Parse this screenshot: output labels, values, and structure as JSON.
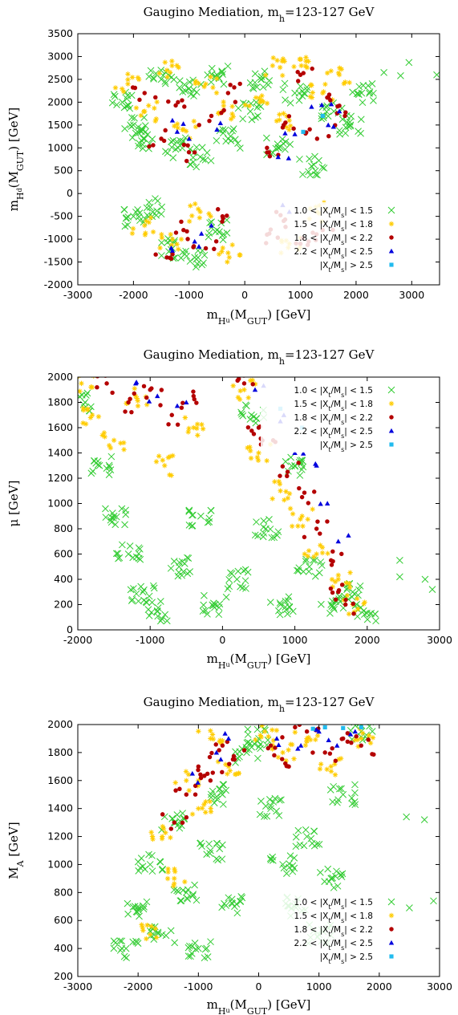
{
  "legend": {
    "entries": [
      {
        "label": "1.0 < |X_t/M_s| < 1.5",
        "color": "#33cc33",
        "marker": "cross"
      },
      {
        "label": "1.5 < |X_t/M_s| < 1.8",
        "color": "#ffcc00",
        "marker": "star"
      },
      {
        "label": "1.8 < |X_t/M_s| < 2.2",
        "color": "#b40000",
        "marker": "circle"
      },
      {
        "label": "2.2 < |X_t/M_s| < 2.5",
        "color": "#0000dd",
        "marker": "triangle"
      },
      {
        "label": "|X_t/M_s| > 2.5",
        "color": "#22bbee",
        "marker": "square"
      }
    ],
    "placement": "bottom-right"
  },
  "chart_data": [
    {
      "type": "scatter",
      "title": "Gaugino Mediation, m_h=123-127 GeV",
      "xlabel": "m_{H_u}(M_{GUT}) [GeV]",
      "ylabel": "m_{H_d}(M_{GUT}) [GeV]",
      "xlim": [
        -3000,
        3500
      ],
      "ylim": [
        -2000,
        3500
      ],
      "xticks": [
        "-3000",
        "-2000",
        "-1000",
        "0",
        "1000",
        "2000",
        "3000"
      ],
      "xtick_values": [
        -3000,
        -2000,
        -1000,
        0,
        1000,
        2000,
        3000
      ],
      "yticks": [
        "-2000",
        "-1500",
        "-1000",
        "-500",
        "0",
        "500",
        "1000",
        "1500",
        "2000",
        "2500",
        "3000",
        "3500"
      ],
      "ytick_values": [
        -2000,
        -1500,
        -1000,
        -500,
        0,
        500,
        1000,
        1500,
        2000,
        2500,
        3000,
        3500
      ],
      "legend_placement": "bottom-right",
      "series": [
        {
          "name": "1.0 < |X_t/M_s| < 1.5",
          "points": [
            [
              -2200,
              2000
            ],
            [
              -2000,
              1500
            ],
            [
              -1800,
              1200
            ],
            [
              -1500,
              2500
            ],
            [
              -1200,
              1000
            ],
            [
              -1000,
              2300
            ],
            [
              -800,
              800
            ],
            [
              -500,
              2600
            ],
            [
              -300,
              1200
            ],
            [
              100,
              1800
            ],
            [
              300,
              2500
            ],
            [
              600,
              1000
            ],
            [
              900,
              2200
            ],
            [
              1200,
              600
            ],
            [
              1600,
              1800
            ],
            [
              1900,
              1500
            ],
            [
              2100,
              2200
            ],
            [
              -2000,
              -500
            ],
            [
              -1700,
              -300
            ],
            [
              -1300,
              -1200
            ],
            [
              -900,
              -1400
            ],
            [
              -500,
              -800
            ],
            [
              2500,
              2650
            ],
            [
              2800,
              2580
            ],
            [
              2950,
              2870
            ],
            [
              3450,
              2600
            ]
          ]
        },
        {
          "name": "1.5 < |X_t/M_s| < 1.8",
          "points": [
            [
              -2100,
              2400
            ],
            [
              -1800,
              1800
            ],
            [
              -1400,
              2700
            ],
            [
              -1100,
              1400
            ],
            [
              -700,
              2400
            ],
            [
              -400,
              1800
            ],
            [
              200,
              2100
            ],
            [
              500,
              2800
            ],
            [
              800,
              1600
            ],
            [
              1100,
              2900
            ],
            [
              1400,
              2200
            ],
            [
              1700,
              2600
            ],
            [
              -1800,
              -700
            ],
            [
              -1300,
              -1000
            ],
            [
              -800,
              -400
            ],
            [
              -300,
              -1300
            ],
            [
              800,
              -1100
            ],
            [
              1300,
              -400
            ]
          ]
        },
        {
          "name": "1.8 < |X_t/M_s| < 2.2",
          "points": [
            [
              -1800,
              2200
            ],
            [
              -1500,
              1200
            ],
            [
              -1200,
              2000
            ],
            [
              -900,
              900
            ],
            [
              -600,
              1700
            ],
            [
              -300,
              2200
            ],
            [
              400,
              1000
            ],
            [
              700,
              1500
            ],
            [
              1000,
              2600
            ],
            [
              1300,
              1200
            ],
            [
              1500,
              2100
            ],
            [
              1800,
              1700
            ],
            [
              -1400,
              -1400
            ],
            [
              -1100,
              -800
            ],
            [
              -700,
              -1200
            ],
            [
              -400,
              -500
            ],
            [
              400,
              -900
            ],
            [
              700,
              -600
            ],
            [
              1000,
              -1100
            ],
            [
              1400,
              -800
            ]
          ]
        },
        {
          "name": "2.2 < |X_t/M_s| < 2.5",
          "points": [
            [
              -1300,
              1600
            ],
            [
              -1000,
              1200
            ],
            [
              -500,
              1400
            ],
            [
              600,
              800
            ],
            [
              900,
              1300
            ],
            [
              1200,
              1900
            ],
            [
              1500,
              1500
            ],
            [
              1700,
              1800
            ],
            [
              -1300,
              -1250
            ],
            [
              -900,
              -1050
            ],
            [
              -600,
              -700
            ],
            [
              800,
              -400
            ]
          ]
        },
        {
          "name": "|X_t/M_s| > 2.5",
          "points": [
            [
              1050,
              1350
            ],
            [
              1400,
              1700
            ]
          ]
        }
      ]
    },
    {
      "type": "scatter",
      "title": "Gaugino Mediation, m_h=123-127 GeV",
      "xlabel": "m_{H_u}(M_{GUT}) [GeV]",
      "ylabel": "μ [GeV]",
      "xlim": [
        -2000,
        3000
      ],
      "ylim": [
        0,
        2000
      ],
      "xticks": [
        "-2000",
        "-1000",
        "0",
        "1000",
        "2000",
        "3000"
      ],
      "xtick_values": [
        -2000,
        -1000,
        0,
        1000,
        2000,
        3000
      ],
      "yticks": [
        "0",
        "200",
        "400",
        "600",
        "800",
        "1000",
        "1200",
        "1400",
        "1600",
        "1800",
        "2000"
      ],
      "ytick_values": [
        0,
        200,
        400,
        600,
        800,
        1000,
        1200,
        1400,
        1600,
        1800,
        2000
      ],
      "legend_placement": "top-right",
      "series": [
        {
          "name": "1.0 < |X_t/M_s| < 1.5",
          "points": [
            [
              -1900,
              1800
            ],
            [
              -1700,
              1300
            ],
            [
              -1500,
              900
            ],
            [
              -1300,
              600
            ],
            [
              -1100,
              300
            ],
            [
              -900,
              150
            ],
            [
              -600,
              500
            ],
            [
              -300,
              900
            ],
            [
              -100,
              200
            ],
            [
              200,
              400
            ],
            [
              400,
              1700
            ],
            [
              600,
              800
            ],
            [
              800,
              200
            ],
            [
              1000,
              1300
            ],
            [
              1200,
              500
            ],
            [
              1500,
              200
            ],
            [
              1800,
              300
            ],
            [
              1950,
              150
            ],
            [
              2450,
              550
            ],
            [
              2450,
              420
            ],
            [
              2800,
              400
            ],
            [
              2900,
              320
            ]
          ]
        },
        {
          "name": "1.5 < |X_t/M_s| < 1.8",
          "points": [
            [
              -1950,
              1950
            ],
            [
              -1800,
              1700
            ],
            [
              -1500,
              1500
            ],
            [
              -1200,
              1850
            ],
            [
              -800,
              1300
            ],
            [
              -400,
              1600
            ],
            [
              300,
              1900
            ],
            [
              500,
              1400
            ],
            [
              800,
              1100
            ],
            [
              1100,
              900
            ],
            [
              1300,
              600
            ],
            [
              1600,
              400
            ],
            [
              1800,
              200
            ]
          ]
        },
        {
          "name": "1.8 < |X_t/M_s| < 2.2",
          "points": [
            [
              -1600,
              1950
            ],
            [
              -1300,
              1800
            ],
            [
              -1000,
              1900
            ],
            [
              -700,
              1700
            ],
            [
              -400,
              1850
            ],
            [
              300,
              1950
            ],
            [
              500,
              1600
            ],
            [
              700,
              1500
            ],
            [
              900,
              1250
            ],
            [
              1100,
              1050
            ],
            [
              1300,
              800
            ],
            [
              1500,
              550
            ],
            [
              1600,
              300
            ],
            [
              1700,
              200
            ]
          ]
        },
        {
          "name": "2.2 < |X_t/M_s| < 2.5",
          "points": [
            [
              -1200,
              1950
            ],
            [
              -900,
              1850
            ],
            [
              -500,
              1800
            ],
            [
              450,
              1900
            ],
            [
              800,
              1650
            ],
            [
              1000,
              1400
            ],
            [
              1300,
              1300
            ],
            [
              1450,
              1000
            ],
            [
              1600,
              700
            ]
          ]
        },
        {
          "name": "|X_t/M_s| > 2.5",
          "points": [
            [
              800,
              1750
            ],
            [
              1100,
              1600
            ]
          ]
        }
      ]
    },
    {
      "type": "scatter",
      "title": "Gaugino Mediation, m_h=123-127 GeV",
      "xlabel": "m_{H_u}(M_{GUT}) [GeV]",
      "ylabel": "M_A [GeV]",
      "xlim": [
        -3000,
        3000
      ],
      "ylim": [
        200,
        2000
      ],
      "xticks": [
        "-3000",
        "-2000",
        "-1000",
        "0",
        "1000",
        "2000",
        "3000"
      ],
      "xtick_values": [
        -3000,
        -2000,
        -1000,
        0,
        1000,
        2000,
        3000
      ],
      "yticks": [
        "200",
        "400",
        "600",
        "800",
        "1000",
        "1200",
        "1400",
        "1600",
        "1800",
        "2000"
      ],
      "ytick_values": [
        200,
        400,
        600,
        800,
        1000,
        1200,
        1400,
        1600,
        1800,
        2000
      ],
      "legend_placement": "bottom-right",
      "series": [
        {
          "name": "1.0 < |X_t/M_s| < 1.5",
          "points": [
            [
              -2200,
              400
            ],
            [
              -2000,
              700
            ],
            [
              -1800,
              1000
            ],
            [
              -1600,
              500
            ],
            [
              -1400,
              1300
            ],
            [
              -1200,
              800
            ],
            [
              -1000,
              400
            ],
            [
              -800,
              1100
            ],
            [
              -600,
              1500
            ],
            [
              -400,
              700
            ],
            [
              -200,
              1800
            ],
            [
              0,
              1900
            ],
            [
              200,
              1400
            ],
            [
              400,
              1000
            ],
            [
              600,
              700
            ],
            [
              800,
              1200
            ],
            [
              1000,
              500
            ],
            [
              1200,
              900
            ],
            [
              1400,
              1500
            ],
            [
              1700,
              1950
            ],
            [
              2450,
              1340
            ],
            [
              2750,
              1320
            ],
            [
              2900,
              740
            ],
            [
              2500,
              690
            ]
          ]
        },
        {
          "name": "1.5 < |X_t/M_s| < 1.8",
          "points": [
            [
              -1800,
              500
            ],
            [
              -1600,
              1200
            ],
            [
              -1400,
              900
            ],
            [
              -1200,
              1600
            ],
            [
              -1000,
              1400
            ],
            [
              -800,
              1900
            ],
            [
              -500,
              1700
            ],
            [
              100,
              1950
            ],
            [
              400,
              1800
            ],
            [
              800,
              1900
            ],
            [
              1200,
              1700
            ],
            [
              1700,
              1900
            ]
          ]
        },
        {
          "name": "1.8 < |X_t/M_s| < 2.2",
          "points": [
            [
              -1400,
              1300
            ],
            [
              -1200,
              1500
            ],
            [
              -1000,
              1700
            ],
            [
              -800,
              1600
            ],
            [
              -600,
              1850
            ],
            [
              -400,
              1750
            ],
            [
              200,
              1850
            ],
            [
              500,
              1700
            ],
            [
              800,
              1950
            ],
            [
              1100,
              1800
            ],
            [
              1400,
              1900
            ],
            [
              1700,
              1850
            ]
          ]
        },
        {
          "name": "2.2 < |X_t/M_s| < 2.5",
          "points": [
            [
              -1100,
              1650
            ],
            [
              -700,
              1800
            ],
            [
              -500,
              1900
            ],
            [
              300,
              1900
            ],
            [
              700,
              1850
            ],
            [
              1000,
              1950
            ],
            [
              1300,
              1850
            ],
            [
              1600,
              1950
            ]
          ]
        },
        {
          "name": "|X_t/M_s| > 2.5",
          "points": [
            [
              900,
              1970
            ],
            [
              1100,
              1980
            ],
            [
              1400,
              1975
            ],
            [
              1700,
              1980
            ]
          ]
        }
      ]
    }
  ]
}
